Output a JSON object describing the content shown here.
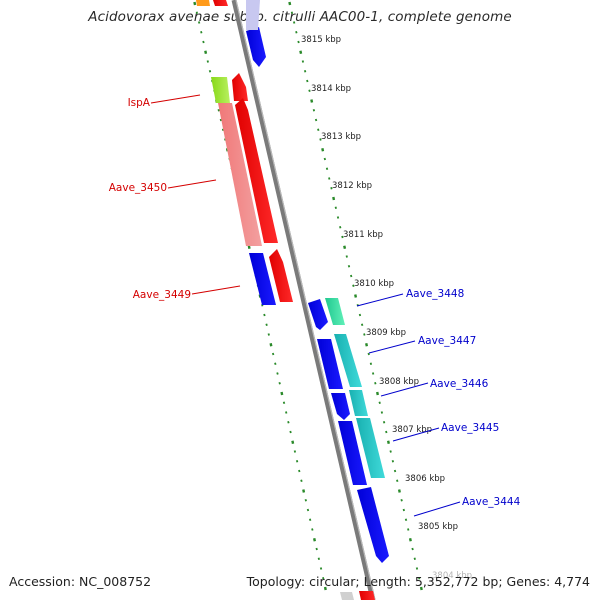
{
  "title": "Acidovorax avenae subsp. citrulli AAC00-1, complete genome",
  "footer": {
    "accession": "Accession: NC_008752",
    "topology": "Topology: circular; Length: 5,352,772 bp; Genes: 4,774"
  },
  "kbp_markers": [
    "3815 kbp",
    "3814 kbp",
    "3813 kbp",
    "3812 kbp",
    "3811 kbp",
    "3810 kbp",
    "3809 kbp",
    "3808 kbp",
    "3807 kbp",
    "3806 kbp",
    "3805 kbp",
    "3804 kbp"
  ],
  "gene_labels": {
    "ispA": "IspA",
    "aave_3450": "Aave_3450",
    "aave_3449": "Aave_3449",
    "aave_3448": "Aave_3448",
    "aave_3447": "Aave_3447",
    "aave_3446": "Aave_3446",
    "aave_3445": "Aave_3445",
    "aave_3444": "Aave_3444"
  },
  "colors": {
    "reverse_strand_label": "#d40000",
    "forward_strand_label": "#0000cc",
    "backbone": "#888888",
    "tick": "#2a8a2a"
  }
}
